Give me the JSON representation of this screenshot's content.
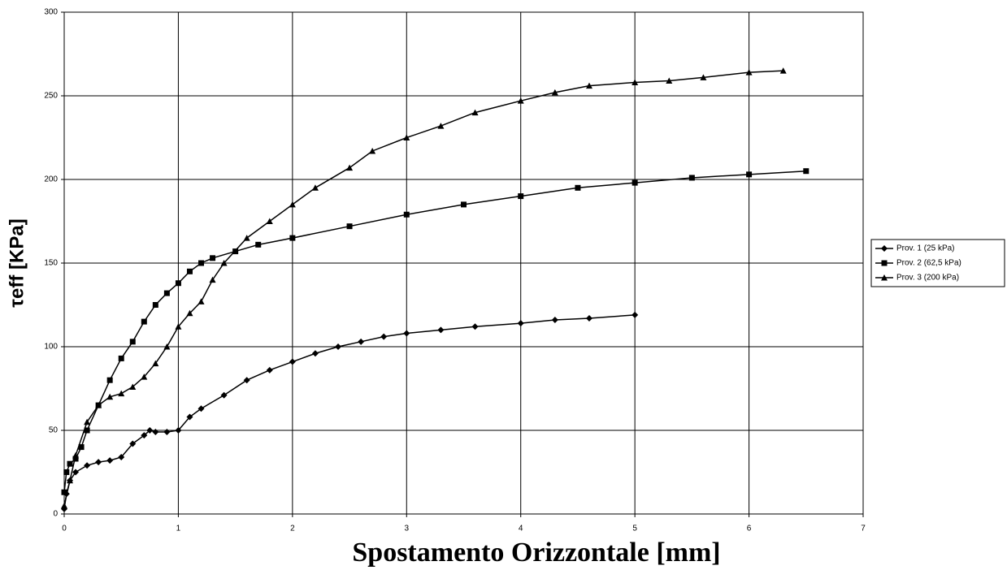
{
  "chart_data": {
    "type": "line",
    "xlabel": "Spostamento Orizzontale [mm]",
    "ylabel": "τeff [KPa]",
    "xlim": [
      0,
      7
    ],
    "xticks": [
      0,
      1,
      2,
      3,
      4,
      5,
      6,
      7
    ],
    "ylim": [
      0,
      300
    ],
    "yticks": [
      0,
      50,
      100,
      150,
      200,
      250,
      300
    ],
    "grid": true,
    "legend": "right",
    "series": [
      {
        "name": "Prov. 1 (25 kPa)",
        "color": "#000000",
        "marker": "diamond",
        "x": [
          0,
          0.02,
          0.05,
          0.1,
          0.2,
          0.3,
          0.4,
          0.5,
          0.6,
          0.7,
          0.75,
          0.8,
          0.9,
          1.0,
          1.1,
          1.2,
          1.4,
          1.6,
          1.8,
          2.0,
          2.2,
          2.4,
          2.6,
          2.8,
          3.0,
          3.3,
          3.6,
          4.0,
          4.3,
          4.6,
          5.0
        ],
        "values": [
          3,
          12,
          20,
          25,
          29,
          31,
          32,
          34,
          42,
          47,
          50,
          49,
          49,
          50,
          58,
          63,
          71,
          80,
          86,
          91,
          96,
          100,
          103,
          106,
          108,
          110,
          112,
          114,
          116,
          117,
          119
        ]
      },
      {
        "name": "Prov. 2 (62,5 kPa)",
        "color": "#000000",
        "marker": "square",
        "x": [
          0,
          0.02,
          0.05,
          0.1,
          0.15,
          0.2,
          0.3,
          0.4,
          0.5,
          0.6,
          0.7,
          0.8,
          0.9,
          1.0,
          1.1,
          1.2,
          1.3,
          1.5,
          1.7,
          2.0,
          2.5,
          3.0,
          3.5,
          4.0,
          4.5,
          5.0,
          5.5,
          6.0,
          6.5
        ],
        "values": [
          13,
          25,
          30,
          33,
          40,
          50,
          65,
          80,
          93,
          103,
          115,
          125,
          132,
          138,
          145,
          150,
          153,
          157,
          161,
          165,
          172,
          179,
          185,
          190,
          195,
          198,
          201,
          203,
          205
        ]
      },
      {
        "name": "Prov. 3 (200 kPa)",
        "color": "#000000",
        "marker": "triangle",
        "x": [
          0,
          0.05,
          0.1,
          0.2,
          0.3,
          0.4,
          0.5,
          0.6,
          0.7,
          0.8,
          0.9,
          1.0,
          1.1,
          1.2,
          1.3,
          1.4,
          1.6,
          1.8,
          2.0,
          2.2,
          2.5,
          2.7,
          3.0,
          3.3,
          3.6,
          4.0,
          4.3,
          4.6,
          5.0,
          5.3,
          5.6,
          6.0,
          6.3
        ],
        "values": [
          5,
          20,
          35,
          55,
          65,
          70,
          72,
          76,
          82,
          90,
          100,
          112,
          120,
          127,
          140,
          150,
          165,
          175,
          185,
          195,
          207,
          217,
          225,
          232,
          240,
          247,
          252,
          256,
          258,
          259,
          261,
          264,
          265
        ]
      }
    ]
  }
}
